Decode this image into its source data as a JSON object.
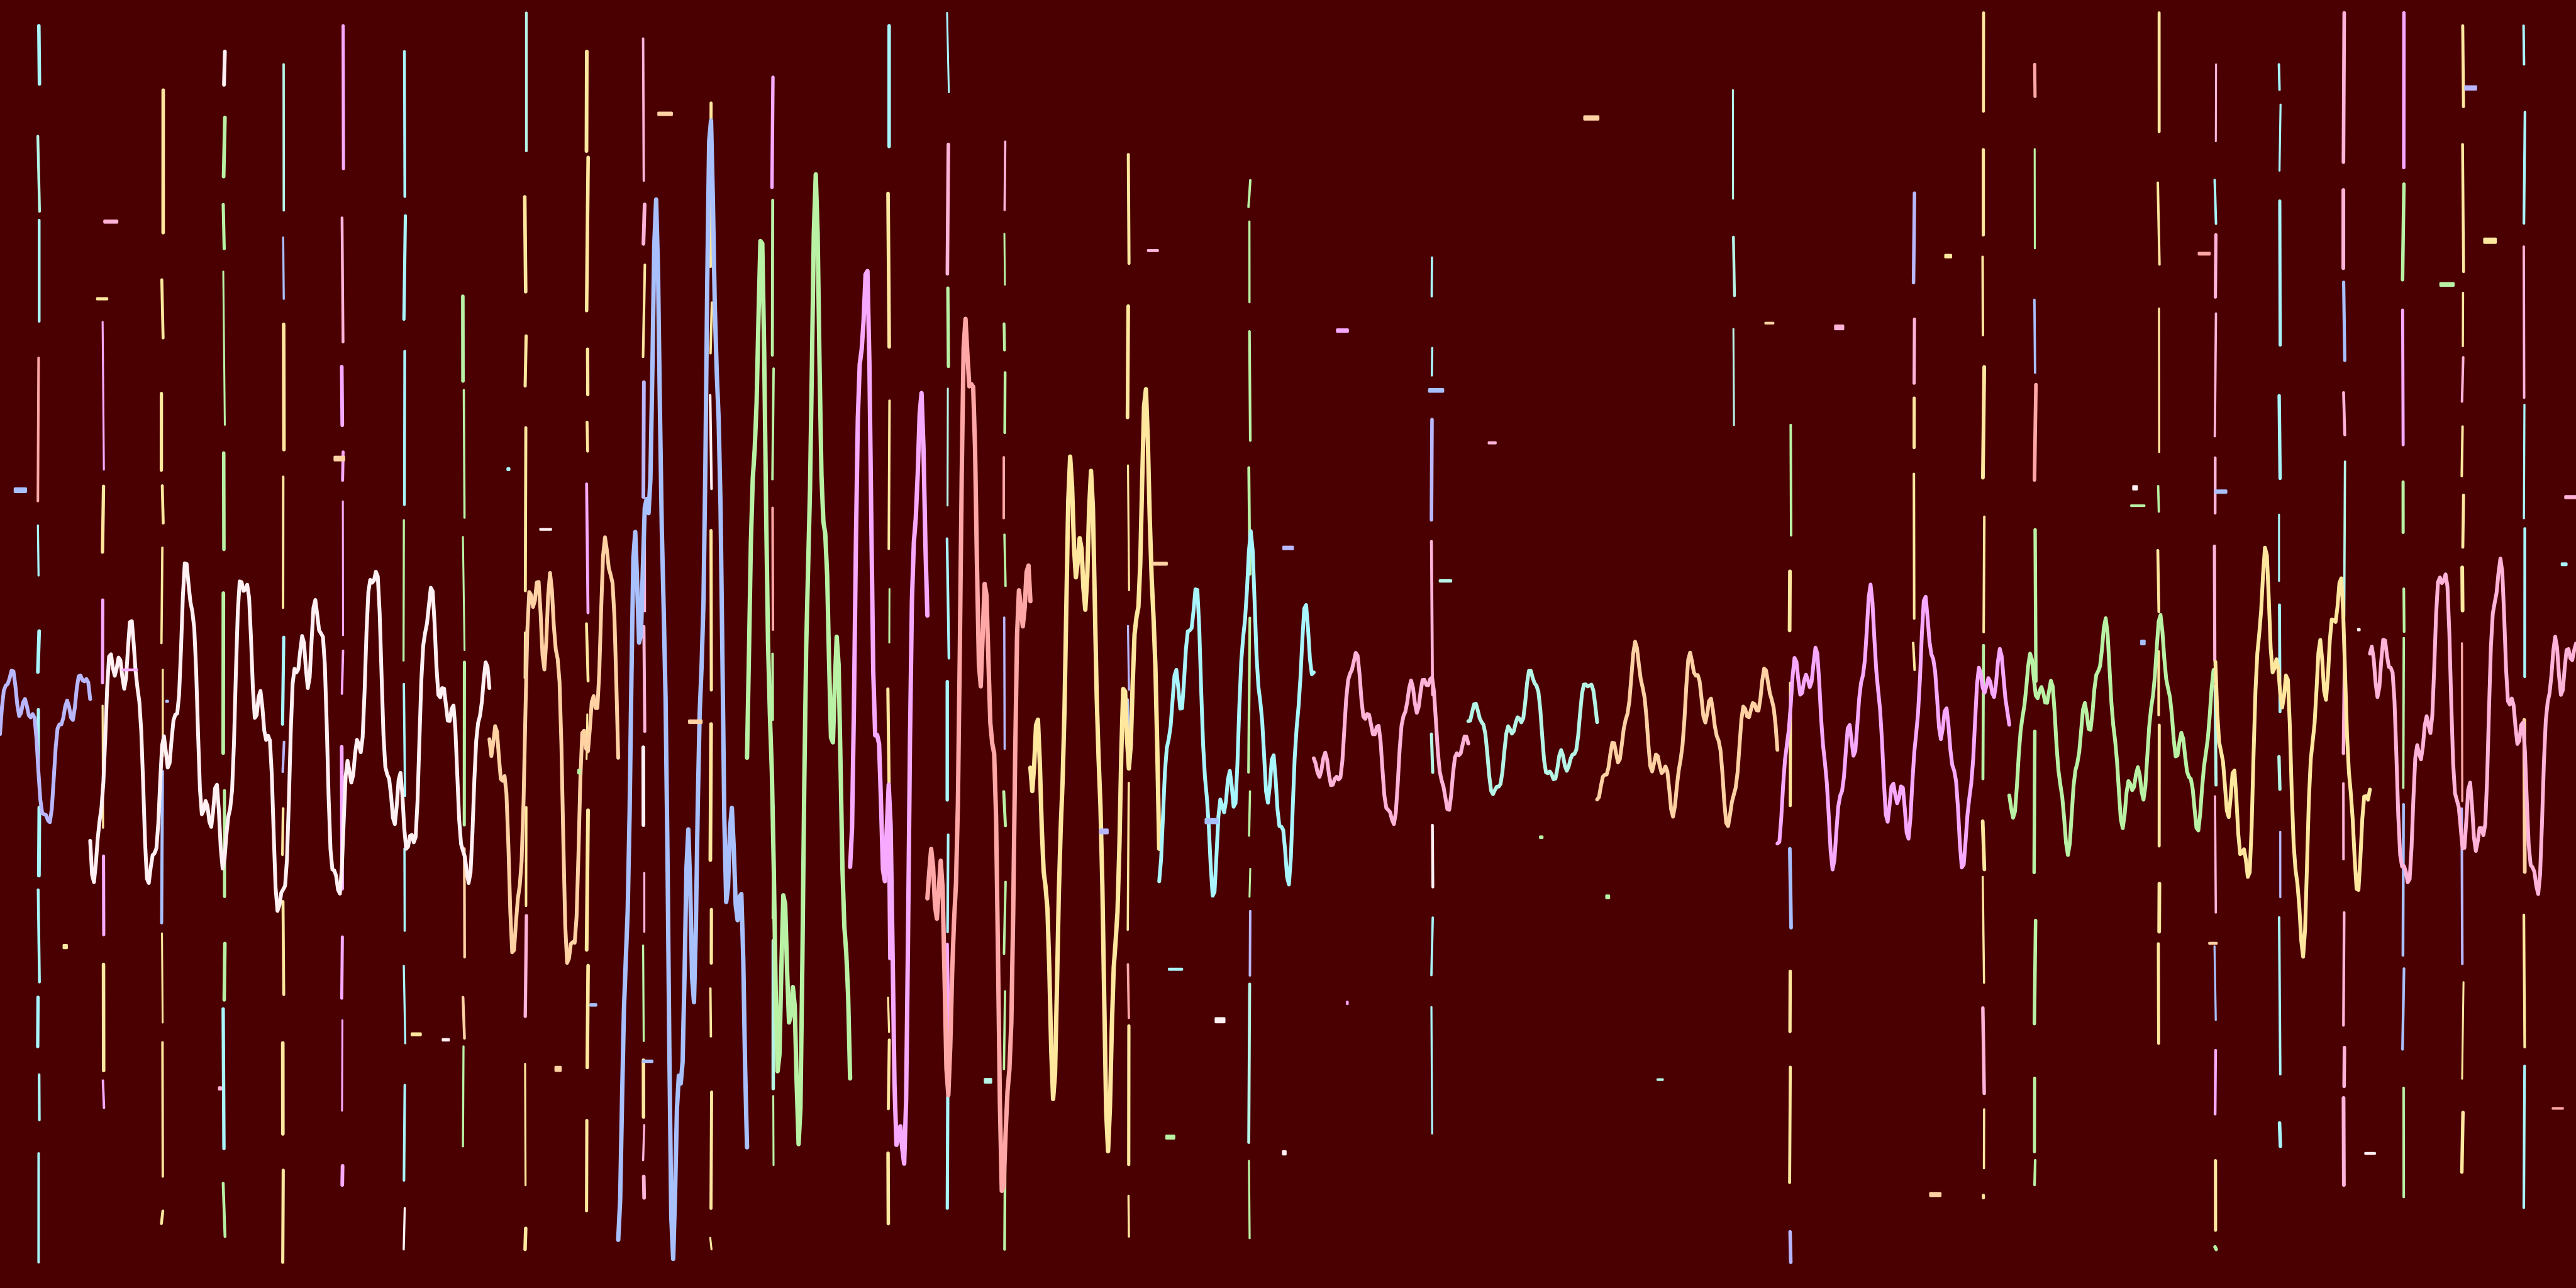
{
  "background_color": "#4a0000",
  "palette": [
    "#fff0f4",
    "#ffb3d9",
    "#f7a9ff",
    "#b9b7ff",
    "#a9c0ff",
    "#b5f5e7",
    "#b9f2a4",
    "#ffe79e",
    "#ffd1a3",
    "#ffa7a7",
    "#a8f6ff"
  ],
  "wave": {
    "segments": [
      {
        "start_t": 0.0,
        "end_t": 0.035,
        "amplitude": 0.08,
        "color": "#b9b7ff"
      },
      {
        "start_t": 0.035,
        "end_t": 0.19,
        "amplitude": 0.16,
        "color": "#fff0f4"
      },
      {
        "start_t": 0.19,
        "end_t": 0.24,
        "amplitude": 0.22,
        "color": "#ffd1a3"
      },
      {
        "start_t": 0.24,
        "end_t": 0.29,
        "amplitude": 0.52,
        "color": "#a9c0ff"
      },
      {
        "start_t": 0.29,
        "end_t": 0.33,
        "amplitude": 0.48,
        "color": "#b9f2a4"
      },
      {
        "start_t": 0.33,
        "end_t": 0.36,
        "amplitude": 0.46,
        "color": "#f7a9ff"
      },
      {
        "start_t": 0.36,
        "end_t": 0.4,
        "amplitude": 0.42,
        "color": "#ffa7a7"
      },
      {
        "start_t": 0.4,
        "end_t": 0.45,
        "amplitude": 0.34,
        "color": "#ffe79e"
      },
      {
        "start_t": 0.45,
        "end_t": 0.51,
        "amplitude": 0.16,
        "color": "#a8f6ff"
      },
      {
        "start_t": 0.51,
        "end_t": 0.57,
        "amplitude": 0.08,
        "color": "#ffb3d9"
      },
      {
        "start_t": 0.57,
        "end_t": 0.62,
        "amplitude": 0.06,
        "color": "#b5f5e7"
      },
      {
        "start_t": 0.62,
        "end_t": 0.69,
        "amplitude": 0.08,
        "color": "#ffd1a3"
      },
      {
        "start_t": 0.69,
        "end_t": 0.78,
        "amplitude": 0.12,
        "color": "#f7a9ff"
      },
      {
        "start_t": 0.78,
        "end_t": 0.86,
        "amplitude": 0.1,
        "color": "#b9f2a4"
      },
      {
        "start_t": 0.86,
        "end_t": 0.92,
        "amplitude": 0.18,
        "color": "#ffe79e"
      },
      {
        "start_t": 0.92,
        "end_t": 1.0,
        "amplitude": 0.16,
        "color": "#ffb3d9"
      }
    ]
  },
  "spikes": [
    {
      "t": 0.015,
      "span": [
        0.02,
        0.98
      ],
      "color": "#a8f6ff"
    },
    {
      "t": 0.04,
      "span": [
        0.25,
        0.86
      ],
      "color": "#ffe79e"
    },
    {
      "t": 0.063,
      "span": [
        0.07,
        0.95
      ],
      "color": "#ffe79e"
    },
    {
      "t": 0.087,
      "span": [
        0.04,
        0.96
      ],
      "color": "#b9f2a4"
    },
    {
      "t": 0.11,
      "span": [
        0.05,
        0.98
      ],
      "color": "#ffe79e"
    },
    {
      "t": 0.133,
      "span": [
        0.02,
        0.92
      ],
      "color": "#f7a9ff"
    },
    {
      "t": 0.157,
      "span": [
        0.04,
        0.97
      ],
      "color": "#a8f6ff"
    },
    {
      "t": 0.18,
      "span": [
        0.23,
        0.89
      ],
      "color": "#b9f2a4"
    },
    {
      "t": 0.204,
      "span": [
        0.01,
        0.97
      ],
      "color": "#ffe79e"
    },
    {
      "t": 0.228,
      "span": [
        0.04,
        0.94
      ],
      "color": "#ffe79e"
    },
    {
      "t": 0.25,
      "span": [
        0.03,
        0.93
      ],
      "color": "#ffb3d9"
    },
    {
      "t": 0.276,
      "span": [
        0.08,
        0.97
      ],
      "color": "#ffe79e"
    },
    {
      "t": 0.3,
      "span": [
        0.06,
        0.92
      ],
      "color": "#b9f2a4"
    },
    {
      "t": 0.345,
      "span": [
        0.02,
        0.95
      ],
      "color": "#ffe79e"
    },
    {
      "t": 0.368,
      "span": [
        0.01,
        0.94
      ],
      "color": "#a8f6ff"
    },
    {
      "t": 0.39,
      "span": [
        0.11,
        0.97
      ],
      "color": "#b9f2a4"
    },
    {
      "t": 0.438,
      "span": [
        0.12,
        0.96
      ],
      "color": "#ffe79e"
    },
    {
      "t": 0.485,
      "span": [
        0.14,
        0.97
      ],
      "color": "#b9f2a4"
    },
    {
      "t": 0.556,
      "span": [
        0.2,
        0.88
      ],
      "color": "#a8f6ff"
    },
    {
      "t": 0.673,
      "span": [
        0.07,
        0.33
      ],
      "color": "#b5f5e7"
    },
    {
      "t": 0.695,
      "span": [
        0.33,
        0.98
      ],
      "color": "#ffe79e"
    },
    {
      "t": 0.743,
      "span": [
        0.15,
        0.52
      ],
      "color": "#ffe79e"
    },
    {
      "t": 0.77,
      "span": [
        0.01,
        0.93
      ],
      "color": "#ffe79e"
    },
    {
      "t": 0.79,
      "span": [
        0.05,
        0.92
      ],
      "color": "#b9f2a4"
    },
    {
      "t": 0.838,
      "span": [
        0.01,
        0.81
      ],
      "color": "#ffe79e"
    },
    {
      "t": 0.86,
      "span": [
        0.05,
        0.97
      ],
      "color": "#ffb3d9"
    },
    {
      "t": 0.885,
      "span": [
        0.05,
        0.89
      ],
      "color": "#a8f6ff"
    },
    {
      "t": 0.91,
      "span": [
        0.01,
        0.92
      ],
      "color": "#ffb3d9"
    },
    {
      "t": 0.933,
      "span": [
        0.01,
        0.96
      ],
      "color": "#b9f2a4"
    },
    {
      "t": 0.956,
      "span": [
        0.02,
        0.91
      ],
      "color": "#ffe79e"
    },
    {
      "t": 0.98,
      "span": [
        0.02,
        0.94
      ],
      "color": "#a8f6ff"
    }
  ]
}
